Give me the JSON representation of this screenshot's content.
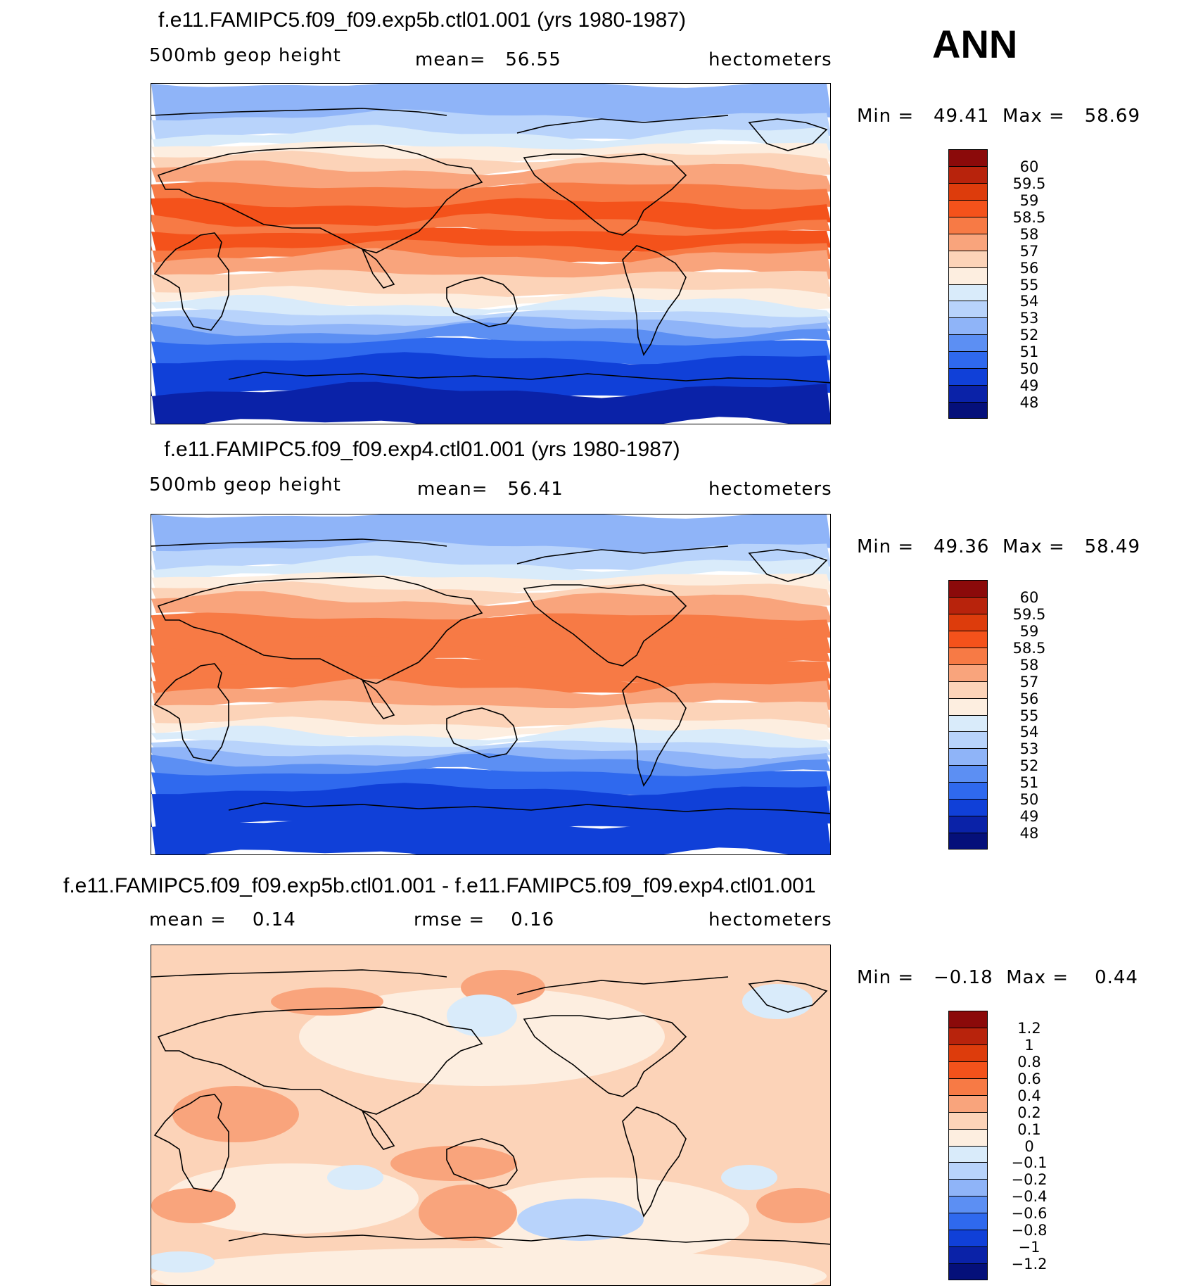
{
  "season": "ANN",
  "panels": [
    {
      "title": "f.e11.FAMIPC5.f09_f09.exp5b.ctl01.001 (yrs 1980-1987)",
      "left_label": "500mb geop height",
      "center_label": "mean=",
      "center_value": "56.55",
      "units": "hectometers",
      "min_label": "Min =",
      "min_value": "49.41",
      "max_label": "Max =",
      "max_value": "58.69",
      "colorbar": {
        "labels": [
          "60",
          "59.5",
          "59",
          "58.5",
          "58",
          "57",
          "56",
          "55",
          "54",
          "53",
          "52",
          "51",
          "50",
          "49",
          "48"
        ],
        "colors": [
          "#8b0a0a",
          "#b8230c",
          "#dd3c0c",
          "#f4521b",
          "#f77a45",
          "#f9a47c",
          "#fcd3b8",
          "#fdeee0",
          "#d9ebfa",
          "#b8d3fb",
          "#8fb4f8",
          "#5c8ff3",
          "#2f69ee",
          "#1040d8",
          "#0a22a8",
          "#05107a"
        ]
      },
      "field_colors": {
        "polar_n": "#8fb4f8",
        "mid_n1": "#b8d3fb",
        "mid_n2": "#d9ebfa",
        "mid_n3": "#fdeee0",
        "sub_n1": "#fcd3b8",
        "sub_n2": "#f9a47c",
        "trop1": "#f77a45",
        "trop2": "#f4521b",
        "sub_s1": "#f9a47c",
        "sub_s2": "#fcd3b8",
        "mid_s1": "#fdeee0",
        "mid_s2": "#d9ebfa",
        "mid_s3": "#b8d3fb",
        "mid_s4": "#8fb4f8",
        "mid_s5": "#5c8ff3",
        "mid_s6": "#2f69ee",
        "polar_s1": "#1040d8",
        "polar_s2": "#0a22a8"
      }
    },
    {
      "title": "f.e11.FAMIPC5.f09_f09.exp4.ctl01.001 (yrs 1980-1987)",
      "left_label": "500mb geop height",
      "center_label": "mean=",
      "center_value": "56.41",
      "units": "hectometers",
      "min_label": "Min =",
      "min_value": "49.36",
      "max_label": "Max =",
      "max_value": "58.49",
      "colorbar": {
        "labels": [
          "60",
          "59.5",
          "59",
          "58.5",
          "58",
          "57",
          "56",
          "55",
          "54",
          "53",
          "52",
          "51",
          "50",
          "49",
          "48"
        ],
        "colors": [
          "#8b0a0a",
          "#b8230c",
          "#dd3c0c",
          "#f4521b",
          "#f77a45",
          "#f9a47c",
          "#fcd3b8",
          "#fdeee0",
          "#d9ebfa",
          "#b8d3fb",
          "#8fb4f8",
          "#5c8ff3",
          "#2f69ee",
          "#1040d8",
          "#0a22a8",
          "#05107a"
        ]
      },
      "field_colors": {
        "polar_n": "#8fb4f8",
        "mid_n1": "#b8d3fb",
        "mid_n2": "#d9ebfa",
        "mid_n3": "#fdeee0",
        "sub_n1": "#fcd3b8",
        "sub_n2": "#f9a47c",
        "trop1": "#f77a45",
        "trop2": "#f77a45",
        "sub_s1": "#f9a47c",
        "sub_s2": "#fcd3b8",
        "mid_s1": "#fdeee0",
        "mid_s2": "#d9ebfa",
        "mid_s3": "#b8d3fb",
        "mid_s4": "#8fb4f8",
        "mid_s5": "#5c8ff3",
        "mid_s6": "#2f69ee",
        "polar_s1": "#1040d8",
        "polar_s2": "#1040d8"
      }
    },
    {
      "title": "f.e11.FAMIPC5.f09_f09.exp5b.ctl01.001 - f.e11.FAMIPC5.f09_f09.exp4.ctl01.001",
      "left_label": "mean =",
      "left_value": "0.14",
      "center_label": "rmse =",
      "center_value": "0.16",
      "units": "hectometers",
      "min_label": "Min =",
      "min_value": "−0.18",
      "max_label": "Max =",
      "max_value": "0.44",
      "colorbar": {
        "labels": [
          "1.2",
          "1",
          "0.8",
          "0.6",
          "0.4",
          "0.2",
          "0.1",
          "0",
          "−0.1",
          "−0.2",
          "−0.4",
          "−0.6",
          "−0.8",
          "−1",
          "−1.2"
        ],
        "colors": [
          "#8b0a0a",
          "#b8230c",
          "#dd3c0c",
          "#f4521b",
          "#f77a45",
          "#f9a47c",
          "#fcd3b8",
          "#fdeee0",
          "#d9ebfa",
          "#b8d3fb",
          "#8fb4f8",
          "#5c8ff3",
          "#2f69ee",
          "#1040d8",
          "#0a22a8",
          "#05107a"
        ]
      },
      "diff_colors": {
        "bg": "#fcd3b8",
        "light": "#fdeee0",
        "mid": "#f9a47c",
        "neg1": "#d9ebfa",
        "neg2": "#b8d3fb"
      }
    }
  ]
}
